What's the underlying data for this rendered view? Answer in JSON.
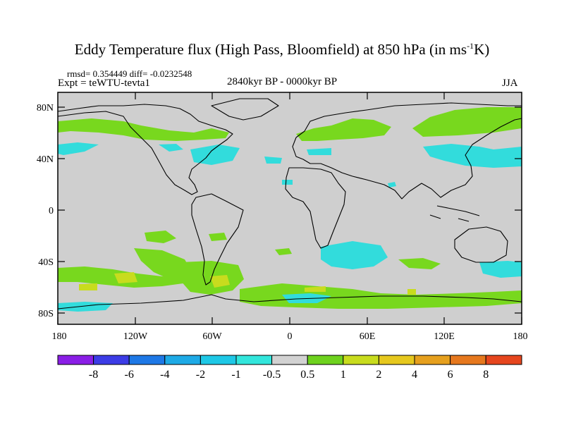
{
  "header": {
    "title_main": "Eddy Temperature flux (High Pass, Bloomfield) at 850 hPa (in ms",
    "title_sup": "-1",
    "title_end": "K)",
    "stats": "rmsd= 0.354449 diff= -0.0232548",
    "expt": "Expt = teWTU-tevta1",
    "period": "2840kyr BP - 0000kyr BP",
    "season": "JJA"
  },
  "axes": {
    "lat_labels": [
      "80N",
      "40N",
      "0",
      "40S",
      "80S"
    ],
    "lon_labels": [
      "180",
      "120W",
      "60W",
      "0",
      "60E",
      "120E",
      "180"
    ]
  },
  "colorbar": {
    "labels": [
      "-8",
      "-6",
      "-4",
      "-2",
      "-1",
      "-0.5",
      "0.5",
      "1",
      "2",
      "4",
      "6",
      "8"
    ],
    "colors": [
      "#8a1ee6",
      "#3c3ce6",
      "#1e78e6",
      "#1eaae6",
      "#1ec8e6",
      "#32e6dc",
      "#d2d2d2",
      "#6ed21e",
      "#c8dc1e",
      "#e6c81e",
      "#e6a01e",
      "#e6781e",
      "#e6461e"
    ]
  },
  "map": {
    "background_color": "#cfcfcf",
    "positive_color": "#78d81e",
    "strong_positive_color": "#c8dc1e",
    "negative_color": "#32dcdc"
  }
}
